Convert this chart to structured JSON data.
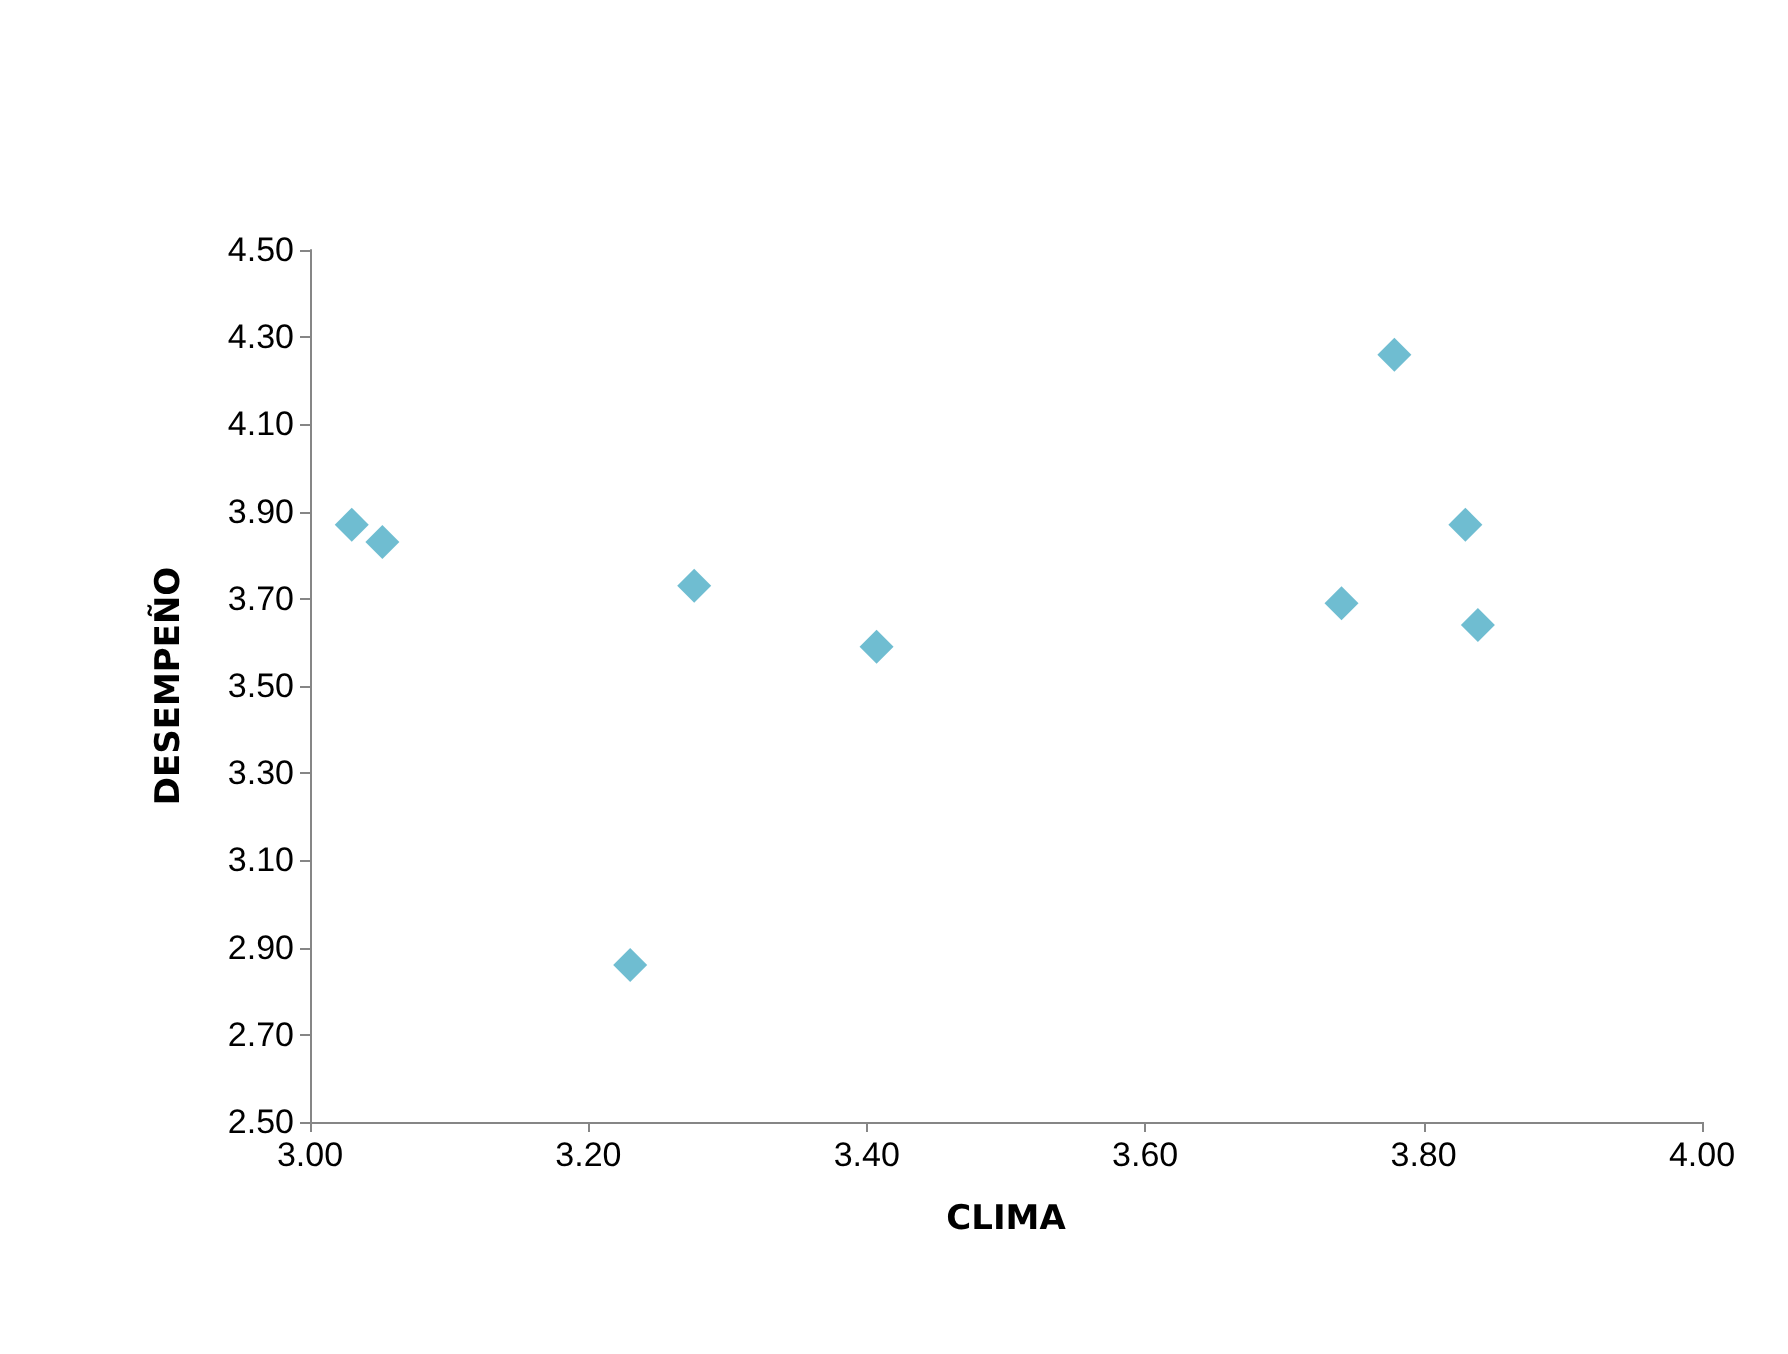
{
  "chart_data": {
    "type": "scatter",
    "xlabel": "CLIMA",
    "ylabel": "DESEMPEÑO",
    "x": [
      3.03,
      3.052,
      3.276,
      3.23,
      3.407,
      3.741,
      3.779,
      3.83,
      3.839
    ],
    "values": [
      3.87,
      3.83,
      3.73,
      2.86,
      3.59,
      3.69,
      4.26,
      3.87,
      3.64
    ],
    "color": "#4bacc6",
    "marker": "diamond",
    "xlim": [
      3.0,
      4.0
    ],
    "xticks": [
      {
        "value": 3.0,
        "label": "3.00"
      },
      {
        "value": 3.2,
        "label": "3.20"
      },
      {
        "value": 3.4,
        "label": "3.40"
      },
      {
        "value": 3.6,
        "label": "3.60"
      },
      {
        "value": 3.8,
        "label": "3.80"
      },
      {
        "value": 4.0,
        "label": "4.00"
      }
    ],
    "ylim": [
      2.5,
      4.5
    ],
    "yticks": [
      {
        "value": 2.5,
        "label": "2.50"
      },
      {
        "value": 2.7,
        "label": "2.70"
      },
      {
        "value": 2.9,
        "label": "2.90"
      },
      {
        "value": 3.1,
        "label": "3.10"
      },
      {
        "value": 3.3,
        "label": "3.30"
      },
      {
        "value": 3.5,
        "label": "3.50"
      },
      {
        "value": 3.7,
        "label": "3.70"
      },
      {
        "value": 3.9,
        "label": "3.90"
      },
      {
        "value": 4.1,
        "label": "4.10"
      },
      {
        "value": 4.3,
        "label": "4.30"
      },
      {
        "value": 4.5,
        "label": "4.50"
      }
    ]
  }
}
